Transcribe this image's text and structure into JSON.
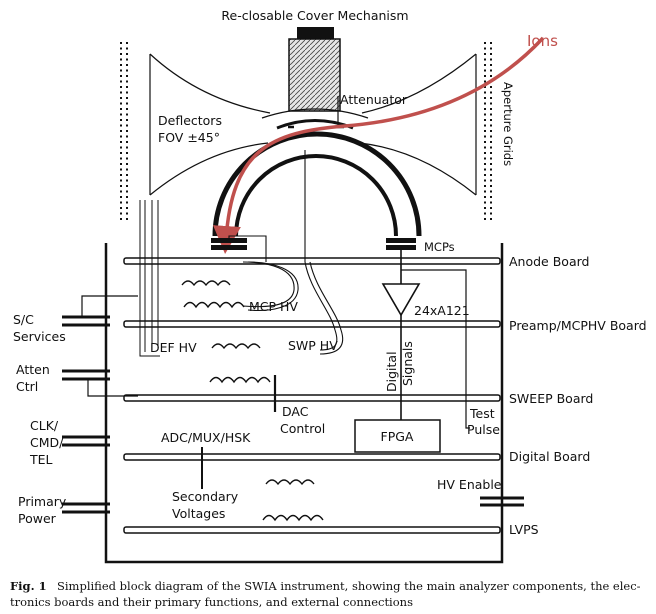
{
  "labels": {
    "cover": "Re-closable Cover Mechanism",
    "ions": "Ions",
    "attenuator": "Attenuator",
    "deflectors": "Deflectors",
    "fov": "FOV ±45°",
    "aperture_grids": "Aperture Grids",
    "mcps": "MCPs",
    "anode_board": "Anode Board",
    "preamp_board": "Preamp/MCPHV Board",
    "sweep_board": "SWEEP Board",
    "digital_board": "Digital Board",
    "lvps": "LVPS",
    "hv_enable": "HV Enable",
    "a121": "24xA121",
    "mcp_hv": "MCP HV",
    "def_hv": "DEF HV",
    "swp_hv": "SWP HV",
    "digital": "Digital",
    "signals": "Signals",
    "dac": "DAC",
    "control": "Control",
    "fpga": "FPGA",
    "test": "Test",
    "pulse": "Pulse",
    "adc_mux_hsk": "ADC/MUX/HSK",
    "secondary": "Secondary",
    "voltages": "Voltages",
    "sc": "S/C",
    "services": "Services",
    "atten": "Atten",
    "ctrl": "Ctrl",
    "clk": "CLK/",
    "cmd": "CMD/",
    "tel": "TEL",
    "primary": "Primary",
    "power": "Power"
  },
  "caption": {
    "figure": "Fig. 1",
    "line1": "Simplified block diagram of the SWIA instrument, showing the main analyzer components, the elec-",
    "line2": "tronics boards and their primary functions, and external connections"
  },
  "colors": {
    "ion_path": "#c0504d",
    "line": "#111111"
  }
}
